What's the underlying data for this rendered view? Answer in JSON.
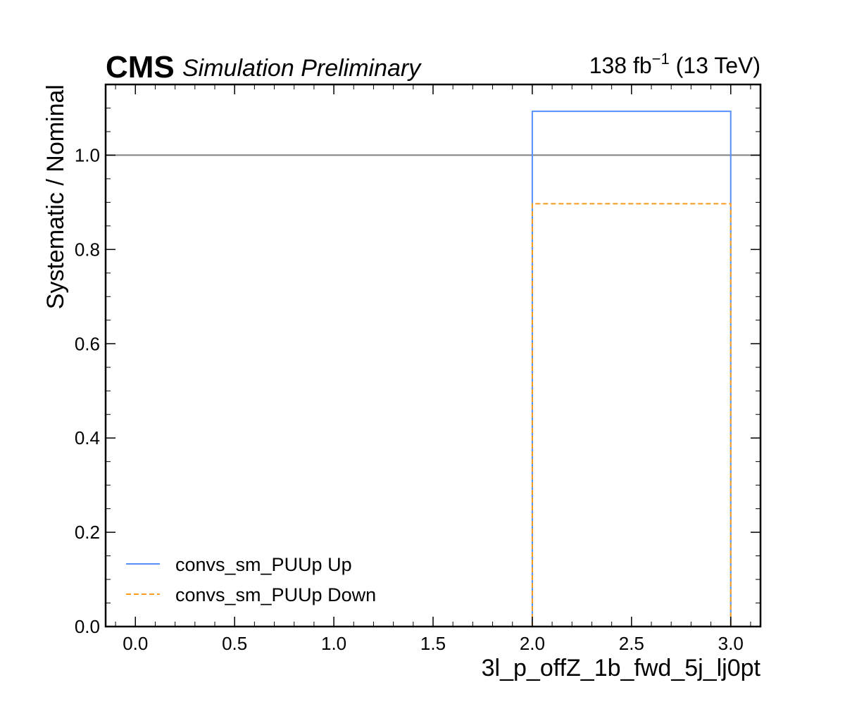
{
  "header": {
    "experiment": "CMS",
    "status": "Simulation Preliminary",
    "lumi_value": "138 fb",
    "lumi_exponent": "−1",
    "lumi_energy": " (13 TeV)"
  },
  "chart_data": {
    "type": "line",
    "title": "",
    "xlabel": "3l_p_offZ_1b_fwd_5j_lj0pt",
    "ylabel": "Systematic / Nominal",
    "xlim": [
      -0.15,
      3.15
    ],
    "ylim": [
      0.0,
      1.15
    ],
    "x_ticks": [
      0.0,
      0.5,
      1.0,
      1.5,
      2.0,
      2.5,
      3.0
    ],
    "x_tick_labels": [
      "0.0",
      "0.5",
      "1.0",
      "1.5",
      "2.0",
      "2.5",
      "3.0"
    ],
    "y_ticks": [
      0.0,
      0.2,
      0.4,
      0.6,
      0.8,
      1.0
    ],
    "y_tick_labels": [
      "0.0",
      "0.2",
      "0.4",
      "0.6",
      "0.8",
      "1.0"
    ],
    "reference_line": {
      "y": 1.0,
      "color": "#808080"
    },
    "grid": false,
    "legend_position": "bottom-left",
    "series": [
      {
        "name": "convs_sm_PUUp Up",
        "color": "#5790fc",
        "style": "solid",
        "bins": [
          {
            "x_low": 2.0,
            "x_high": 3.0,
            "value": 1.093
          }
        ]
      },
      {
        "name": "convs_sm_PUUp Down",
        "color": "#f89c20",
        "style": "dashed",
        "bins": [
          {
            "x_low": 2.0,
            "x_high": 3.0,
            "value": 0.897
          }
        ]
      }
    ]
  }
}
